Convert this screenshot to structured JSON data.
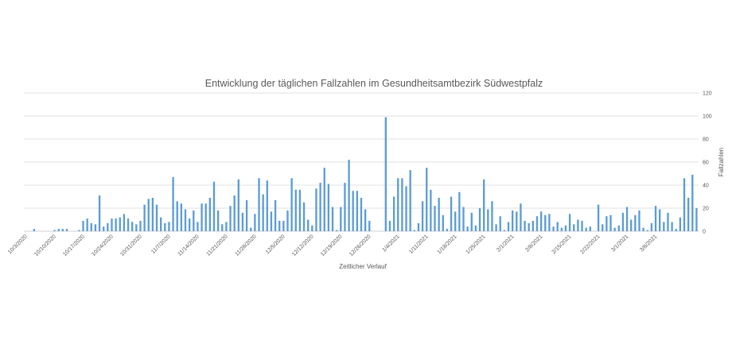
{
  "chart_data": {
    "type": "bar",
    "title": "Entwicklung der täglichen Fallzahlen im Gesundheitsamtbezirk Südwestpfalz",
    "xlabel": "Zeitlicher Verlauf",
    "ylabel": "Fallzahlen",
    "y_axis_side": "right",
    "ylim": [
      0,
      120
    ],
    "yticks": [
      0,
      20,
      40,
      60,
      80,
      100,
      120
    ],
    "grid": true,
    "legend": "none",
    "bar_color": "#5b9bd5",
    "x_start": "10/3/2020",
    "x_tick_labels": [
      "10/3/2020",
      "10/10/2020",
      "10/17/2020",
      "10/24/2020",
      "10/31/2020",
      "11/7/2020",
      "11/14/2020",
      "11/21/2020",
      "11/28/2020",
      "12/5/2020",
      "12/12/2020",
      "12/19/2020",
      "12/26/2020",
      "1/4/2021",
      "1/11/2021",
      "1/18/2021",
      "1/25/2021",
      "2/1/2021",
      "2/8/2021",
      "2/15/2021",
      "2/22/2021",
      "3/1/2021",
      "3/8/2021"
    ],
    "values": [
      0,
      0,
      2,
      0,
      0,
      0,
      0,
      1,
      2,
      2,
      2,
      0,
      0,
      1,
      9,
      11,
      7,
      6,
      31,
      4,
      7,
      11,
      11,
      12,
      15,
      11,
      8,
      6,
      9,
      23,
      28,
      29,
      23,
      12,
      7,
      8,
      47,
      26,
      24,
      19,
      11,
      18,
      8,
      24,
      24,
      29,
      43,
      18,
      6,
      8,
      22,
      31,
      45,
      16,
      27,
      3,
      15,
      46,
      32,
      44,
      17,
      27,
      9,
      9,
      18,
      46,
      36,
      36,
      25,
      10,
      5,
      37,
      42,
      55,
      41,
      21,
      1,
      21,
      42,
      62,
      35,
      35,
      29,
      19,
      9,
      0,
      0,
      0,
      99,
      9,
      30,
      46,
      46,
      39,
      53,
      1,
      7,
      26,
      55,
      36,
      22,
      29,
      14,
      2,
      30,
      17,
      34,
      21,
      4,
      16,
      5,
      20,
      45,
      19,
      26,
      6,
      13,
      1,
      8,
      18,
      17,
      24,
      9,
      7,
      9,
      13,
      17,
      14,
      15,
      4,
      8,
      3,
      5,
      15,
      6,
      10,
      9,
      3,
      4,
      0,
      23,
      6,
      13,
      14,
      3,
      5,
      16,
      21,
      10,
      14,
      18,
      3,
      1,
      7,
      22,
      19,
      8,
      16,
      8,
      2,
      12,
      46,
      29,
      49,
      20
    ]
  }
}
